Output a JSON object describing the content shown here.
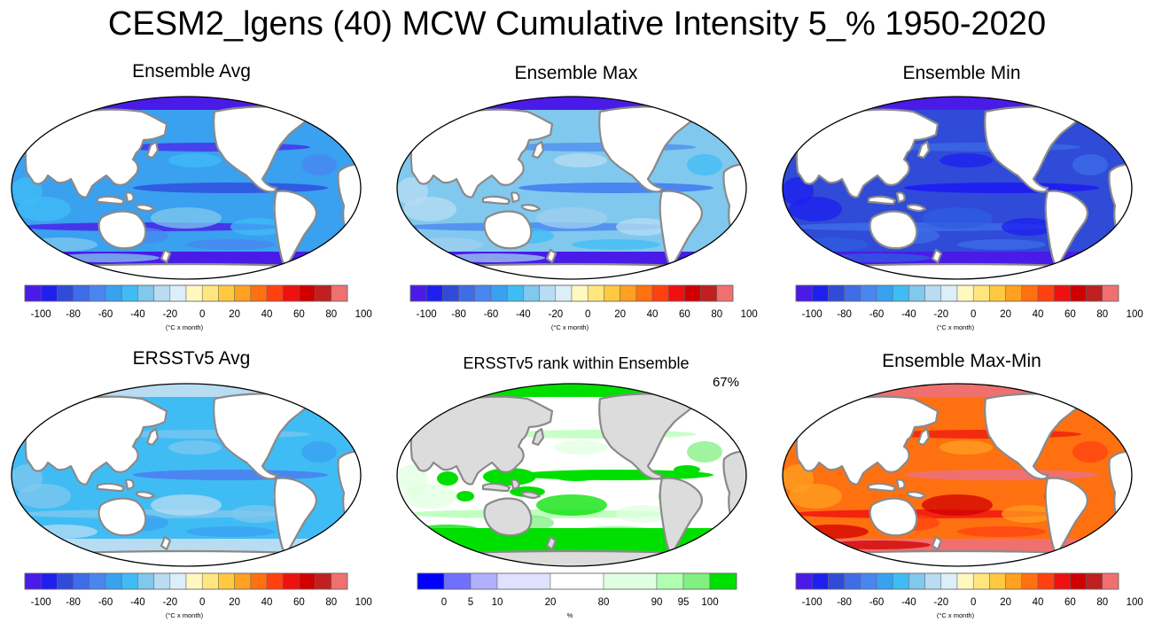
{
  "title": "CESM2_lgens (40) MCW Cumulative Intensity 5_% 1950-2020",
  "colors": {
    "div_scale": [
      "#4a1be8",
      "#1f1ff0",
      "#2f4bd8",
      "#3d6ee8",
      "#4a86f0",
      "#3aa0f0",
      "#40bcf5",
      "#80c8ee",
      "#b8dcf2",
      "#dceef8",
      "#fff8c0",
      "#ffe680",
      "#ffc840",
      "#ffa020",
      "#ff7010",
      "#ff4010",
      "#f01010",
      "#d00000",
      "#c02020",
      "#f07070"
    ],
    "rank_scale": [
      "#0000ff",
      "#7070ff",
      "#b0b0ff",
      "#e0e0ff",
      "#ffffff",
      "#e0ffe0",
      "#b0ffb0",
      "#80f080",
      "#00e000"
    ],
    "land": "#ffffff",
    "land_gray": "#dcdcdc",
    "coast": "#8a8a8a"
  },
  "colorbar_diverging": {
    "ticks": [
      "-100",
      "-80",
      "-60",
      "-40",
      "-20",
      "0",
      "20",
      "40",
      "60",
      "80",
      "100"
    ],
    "unit": "(°C x month)"
  },
  "colorbar_rank": {
    "ticks": [
      "0",
      "5",
      "10",
      "20",
      "80",
      "90",
      "95",
      "100"
    ],
    "unit": "%"
  },
  "panels": [
    {
      "title": "Ensemble Avg",
      "style": "avg"
    },
    {
      "title": "Ensemble Max",
      "style": "max"
    },
    {
      "title": "Ensemble Min",
      "style": "min"
    },
    {
      "title": "ERSSTv5 Avg",
      "style": "obs"
    },
    {
      "title": "ERSSTv5 rank within Ensemble",
      "style": "rank",
      "rank_percent": "67%"
    },
    {
      "title": "Ensemble Max-Min",
      "style": "range"
    }
  ]
}
